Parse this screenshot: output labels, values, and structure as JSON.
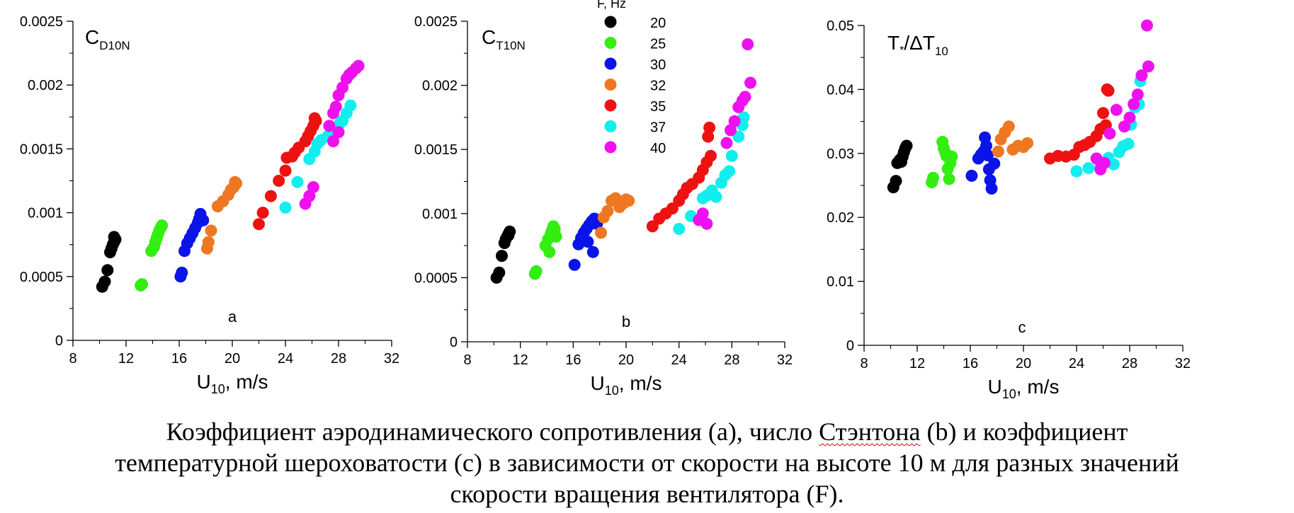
{
  "legend": {
    "title": "F, Hz",
    "items": [
      {
        "label": "20",
        "color": "#000000"
      },
      {
        "label": "25",
        "color": "#33ee11"
      },
      {
        "label": "30",
        "color": "#0a14e6"
      },
      {
        "label": "32",
        "color": "#ee7722"
      },
      {
        "label": "35",
        "color": "#ee1111"
      },
      {
        "label": "37",
        "color": "#11eeee"
      },
      {
        "label": "40",
        "color": "#ee11ee"
      }
    ]
  },
  "caption": {
    "line1_a": "Коэффициент аэродинамического сопротивления (a), число ",
    "line1_b": "Стэнтона",
    "line1_c": " (b) и коэффициент",
    "line2": "температурной шероховатости (c) в зависимости от скорости на высоте 10 м для разных значений",
    "line3": "скорости вращения вентилятора (F)."
  },
  "chart_data": [
    {
      "type": "scatter",
      "panel_letter": "a",
      "title": "C",
      "title_sub": "D10N",
      "xlabel": "U",
      "xlabel_sub": "10",
      "xlabel_suffix": ", m/s",
      "xlim": [
        8,
        32
      ],
      "ylim": [
        0,
        0.0025
      ],
      "xticks": [
        8,
        12,
        16,
        20,
        24,
        28,
        32
      ],
      "yticks": [
        0,
        0.0005,
        0.001,
        0.0015,
        0.002,
        0.0025
      ],
      "ytick_labels": [
        "0",
        "0.0005",
        "0.001",
        "0.0015",
        "0.002",
        "0.0025"
      ],
      "grid": false,
      "series": [
        {
          "name": "20",
          "x": [
            10.2,
            10.4,
            10.6,
            10.8,
            10.9,
            11.0,
            11.1,
            11.2,
            11.1
          ],
          "y": [
            0.00042,
            0.00046,
            0.00055,
            0.00069,
            0.00072,
            0.00075,
            0.00077,
            0.00079,
            0.00081
          ]
        },
        {
          "name": "25",
          "x": [
            13.1,
            13.2,
            13.9,
            14.1,
            14.2,
            14.3,
            14.4,
            14.5,
            14.6,
            14.7
          ],
          "y": [
            0.00043,
            0.00044,
            0.0007,
            0.00073,
            0.00077,
            0.0008,
            0.00083,
            0.00086,
            0.00088,
            0.0009
          ]
        },
        {
          "name": "30",
          "x": [
            16.1,
            16.2,
            16.4,
            16.6,
            16.8,
            17.0,
            17.2,
            17.4,
            17.5,
            17.6,
            17.8
          ],
          "y": [
            0.0005,
            0.00053,
            0.0007,
            0.00076,
            0.0008,
            0.00084,
            0.00088,
            0.00092,
            0.00095,
            0.00099,
            0.00094
          ]
        },
        {
          "name": "32",
          "x": [
            18.1,
            18.2,
            18.4,
            18.9,
            19.3,
            19.7,
            19.9,
            20.1,
            20.3,
            20.2
          ],
          "y": [
            0.00072,
            0.00077,
            0.00086,
            0.00105,
            0.00109,
            0.00114,
            0.00118,
            0.0012,
            0.00123,
            0.00124
          ]
        },
        {
          "name": "35",
          "x": [
            22.0,
            22.3,
            22.9,
            23.5,
            24.0,
            24.1,
            24.5,
            24.7,
            25.0,
            25.5,
            25.7,
            25.9,
            26.1,
            26.3,
            26.2
          ],
          "y": [
            0.00091,
            0.001,
            0.00113,
            0.00125,
            0.00133,
            0.00143,
            0.00144,
            0.00147,
            0.00151,
            0.00156,
            0.0016,
            0.00164,
            0.00168,
            0.00172,
            0.00174
          ]
        },
        {
          "name": "37",
          "x": [
            24.0,
            24.9,
            25.8,
            26.2,
            26.4,
            26.7,
            27.2,
            27.5,
            27.9,
            28.1,
            28.3,
            28.6,
            28.9
          ],
          "y": [
            0.00104,
            0.00124,
            0.00142,
            0.00148,
            0.00154,
            0.00157,
            0.0016,
            0.00163,
            0.00166,
            0.0017,
            0.00172,
            0.00178,
            0.00184
          ]
        },
        {
          "name": "40",
          "x": [
            25.5,
            25.8,
            26.1,
            27.6,
            28.0,
            27.3,
            27.6,
            27.8,
            28.0,
            28.3,
            28.6,
            28.8,
            29.0,
            29.3,
            29.5
          ],
          "y": [
            0.00107,
            0.00113,
            0.0012,
            0.00156,
            0.00163,
            0.00168,
            0.00178,
            0.00183,
            0.00192,
            0.00198,
            0.00205,
            0.00208,
            0.0021,
            0.00213,
            0.00215
          ]
        }
      ]
    },
    {
      "type": "scatter",
      "panel_letter": "b",
      "title": "C",
      "title_sub": "T10N",
      "xlabel": "U",
      "xlabel_sub": "10",
      "xlabel_suffix": ", m/s",
      "xlim": [
        8,
        32
      ],
      "ylim": [
        0,
        0.0025
      ],
      "xticks": [
        8,
        12,
        16,
        20,
        24,
        28,
        32
      ],
      "yticks": [
        0,
        0.0005,
        0.001,
        0.0015,
        0.002,
        0.0025
      ],
      "ytick_labels": [
        "0",
        "0.0005",
        "0.001",
        "0.0015",
        "0.002",
        "0.0025"
      ],
      "grid": false,
      "series": [
        {
          "name": "20",
          "x": [
            10.2,
            10.4,
            10.6,
            10.8,
            10.9,
            11.0,
            11.1,
            11.2,
            11.1
          ],
          "y": [
            0.0005,
            0.00054,
            0.00067,
            0.00077,
            0.0008,
            0.00082,
            0.00084,
            0.00086,
            0.00083
          ]
        },
        {
          "name": "25",
          "x": [
            13.1,
            13.2,
            13.9,
            14.1,
            14.2,
            14.3,
            14.4,
            14.5,
            14.6,
            14.7
          ],
          "y": [
            0.00053,
            0.00055,
            0.00075,
            0.0008,
            0.0007,
            0.00084,
            0.00087,
            0.0009,
            0.00088,
            0.00082
          ]
        },
        {
          "name": "30",
          "x": [
            16.1,
            16.4,
            16.6,
            16.8,
            17.0,
            17.2,
            17.4,
            17.6,
            17.1,
            17.8,
            17.5
          ],
          "y": [
            0.0006,
            0.00076,
            0.00081,
            0.00085,
            0.00088,
            0.00091,
            0.00094,
            0.00096,
            0.00078,
            0.00092,
            0.0007
          ]
        },
        {
          "name": "32",
          "x": [
            18.1,
            18.3,
            18.6,
            18.9,
            19.2,
            19.5,
            19.8,
            20.0,
            20.2
          ],
          "y": [
            0.00085,
            0.00097,
            0.00102,
            0.0011,
            0.00112,
            0.00105,
            0.00108,
            0.00111,
            0.0011
          ]
        },
        {
          "name": "35",
          "x": [
            22.0,
            22.5,
            23.0,
            23.5,
            24.0,
            24.3,
            24.6,
            25.0,
            25.5,
            25.8,
            26.1,
            26.4,
            26.2,
            26.3
          ],
          "y": [
            0.0009,
            0.00096,
            0.001,
            0.00104,
            0.0011,
            0.00115,
            0.0012,
            0.00123,
            0.00128,
            0.00134,
            0.0014,
            0.00145,
            0.0016,
            0.00167
          ]
        },
        {
          "name": "37",
          "x": [
            24.0,
            24.9,
            25.8,
            26.1,
            26.5,
            26.8,
            27.2,
            27.5,
            27.8,
            28.0,
            28.5,
            28.8,
            28.9
          ],
          "y": [
            0.00088,
            0.00098,
            0.00112,
            0.00114,
            0.00118,
            0.00113,
            0.00124,
            0.0013,
            0.00133,
            0.00145,
            0.0016,
            0.00169,
            0.00175
          ]
        },
        {
          "name": "40",
          "x": [
            25.5,
            25.8,
            26.1,
            27.6,
            27.9,
            28.2,
            28.5,
            28.8,
            29.0,
            29.2,
            29.4
          ],
          "y": [
            0.00095,
            0.001,
            0.00092,
            0.00155,
            0.00165,
            0.00172,
            0.00183,
            0.00188,
            0.00191,
            0.00232,
            0.00202
          ]
        }
      ]
    },
    {
      "type": "scatter",
      "panel_letter": "c",
      "title": "T",
      "title_mid": "*",
      "title_tail": "/ΔT",
      "title_sub": "10",
      "xlabel": "U",
      "xlabel_sub": "10",
      "xlabel_suffix": ", m/s",
      "xlim": [
        8,
        32
      ],
      "ylim": [
        0,
        0.05
      ],
      "xticks": [
        8,
        12,
        16,
        20,
        24,
        28,
        32
      ],
      "yticks": [
        0,
        0.01,
        0.02,
        0.03,
        0.04,
        0.05
      ],
      "ytick_labels": [
        "0",
        "0.01",
        "0.02",
        "0.03",
        "0.04",
        "0.05"
      ],
      "grid": false,
      "series": [
        {
          "name": "20",
          "x": [
            10.2,
            10.4,
            10.5,
            10.7,
            10.9,
            11.0,
            11.1,
            11.2,
            10.8
          ],
          "y": [
            0.0247,
            0.0257,
            0.0285,
            0.029,
            0.0295,
            0.0302,
            0.0308,
            0.0312,
            0.0287
          ]
        },
        {
          "name": "25",
          "x": [
            13.1,
            13.2,
            13.9,
            14.0,
            14.1,
            14.2,
            14.3,
            14.4,
            14.5,
            14.6
          ],
          "y": [
            0.0255,
            0.0262,
            0.0318,
            0.0308,
            0.0302,
            0.0296,
            0.0276,
            0.026,
            0.0285,
            0.0295
          ]
        },
        {
          "name": "30",
          "x": [
            16.1,
            16.6,
            16.8,
            17.0,
            17.2,
            17.3,
            17.4,
            17.5,
            17.6,
            17.8,
            17.1
          ],
          "y": [
            0.0265,
            0.0292,
            0.0298,
            0.0303,
            0.0312,
            0.0297,
            0.0275,
            0.0258,
            0.0245,
            0.0284,
            0.0325
          ]
        },
        {
          "name": "32",
          "x": [
            18.1,
            18.3,
            18.6,
            18.9,
            19.2,
            19.6,
            20.0,
            20.3
          ],
          "y": [
            0.0303,
            0.0322,
            0.0333,
            0.0342,
            0.0306,
            0.0312,
            0.031,
            0.0316
          ]
        },
        {
          "name": "35",
          "x": [
            22.0,
            22.6,
            23.2,
            23.8,
            24.2,
            24.6,
            25.0,
            25.5,
            25.8,
            26.0,
            26.2,
            26.3,
            26.4
          ],
          "y": [
            0.0292,
            0.0296,
            0.0295,
            0.0298,
            0.031,
            0.0313,
            0.0318,
            0.0327,
            0.0338,
            0.0363,
            0.0344,
            0.04,
            0.0398
          ]
        },
        {
          "name": "37",
          "x": [
            24.0,
            24.9,
            25.8,
            26.4,
            26.8,
            27.2,
            27.5,
            27.9,
            28.1,
            28.4,
            28.8,
            28.7
          ],
          "y": [
            0.0272,
            0.0277,
            0.0282,
            0.0293,
            0.0283,
            0.0302,
            0.0311,
            0.0315,
            0.0345,
            0.0372,
            0.0413,
            0.0377
          ]
        },
        {
          "name": "40",
          "x": [
            25.5,
            25.8,
            26.1,
            26.5,
            27.0,
            27.6,
            28.0,
            28.3,
            28.6,
            28.9,
            29.3,
            29.4
          ],
          "y": [
            0.0292,
            0.0275,
            0.0285,
            0.0331,
            0.0368,
            0.0342,
            0.0356,
            0.0377,
            0.0392,
            0.0422,
            0.05,
            0.0436
          ]
        }
      ]
    }
  ]
}
